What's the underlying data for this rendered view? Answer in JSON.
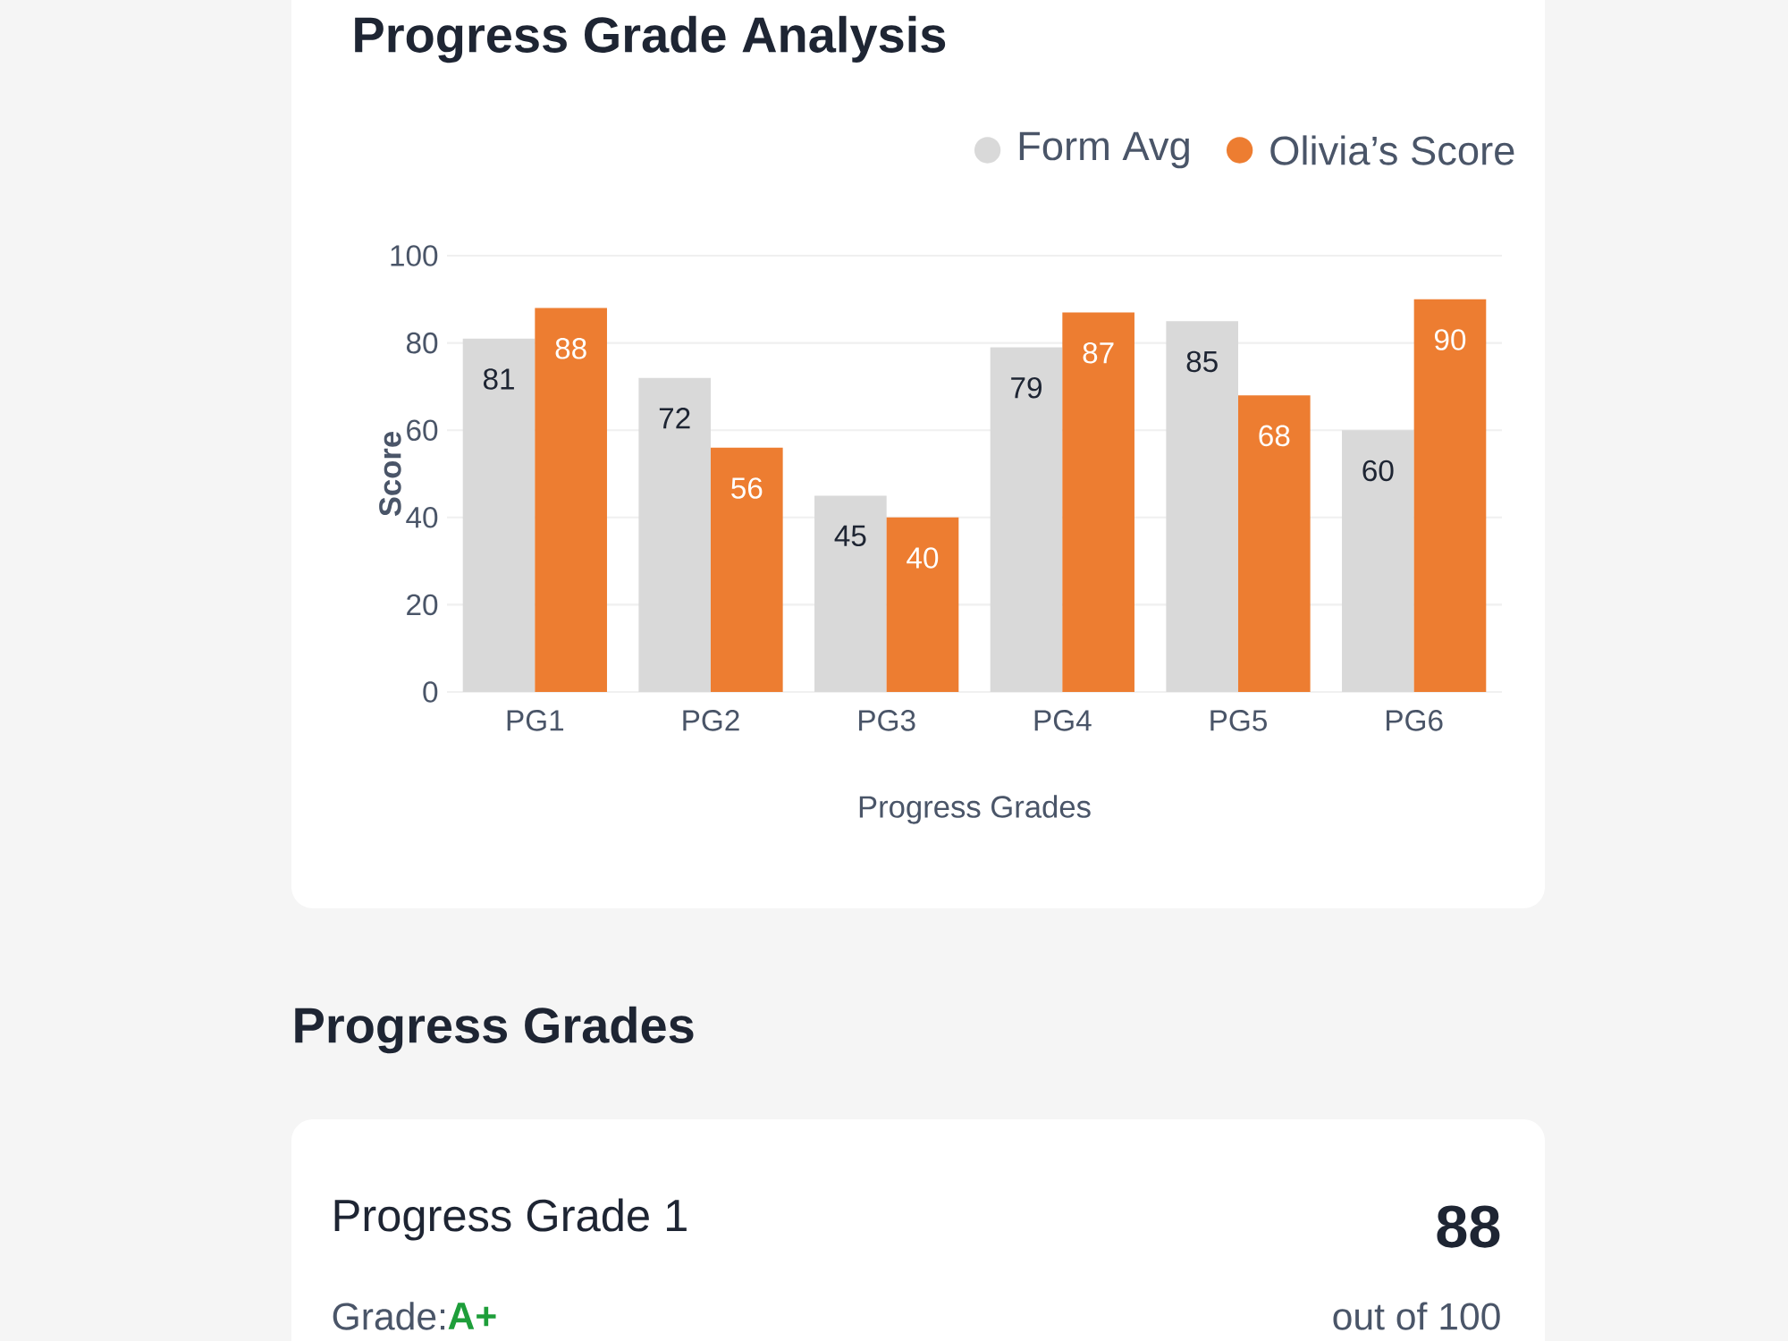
{
  "chart_data": {
    "type": "bar",
    "title": "Progress Grade Analysis",
    "xlabel": "Progress Grades",
    "ylabel": "Score",
    "categories": [
      "PG1",
      "PG2",
      "PG3",
      "PG4",
      "PG5",
      "PG6"
    ],
    "series": [
      {
        "name": "Form Avg",
        "color": "#d9d9d9",
        "values": [
          81,
          72,
          45,
          79,
          85,
          60
        ]
      },
      {
        "name": "Olivia’s Score",
        "color": "#ed7d31",
        "values": [
          88,
          56,
          40,
          87,
          68,
          90
        ]
      }
    ],
    "data_labels": true,
    "ylim": [
      0,
      100
    ],
    "yticks": [
      0,
      20,
      40,
      60,
      80,
      100
    ],
    "grid": "y",
    "legend": "top right",
    "annotations": [
      "Progress Grades",
      "Progress Grade 1",
      "88",
      "Grade:",
      "A+",
      "out of 100"
    ]
  }
}
